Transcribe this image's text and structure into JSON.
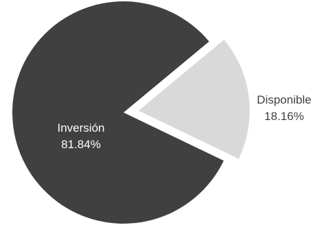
{
  "chart_data": {
    "type": "pie",
    "slices": [
      {
        "label": "Inversión",
        "value": 81.84,
        "percent_label": "81.84%",
        "color": "#404040",
        "label_color": "#ffffff",
        "exploded": false
      },
      {
        "label": "Disponible",
        "value": 18.16,
        "percent_label": "18.16%",
        "color": "#d9d9d9",
        "label_color": "#404040",
        "exploded": true
      }
    ]
  }
}
